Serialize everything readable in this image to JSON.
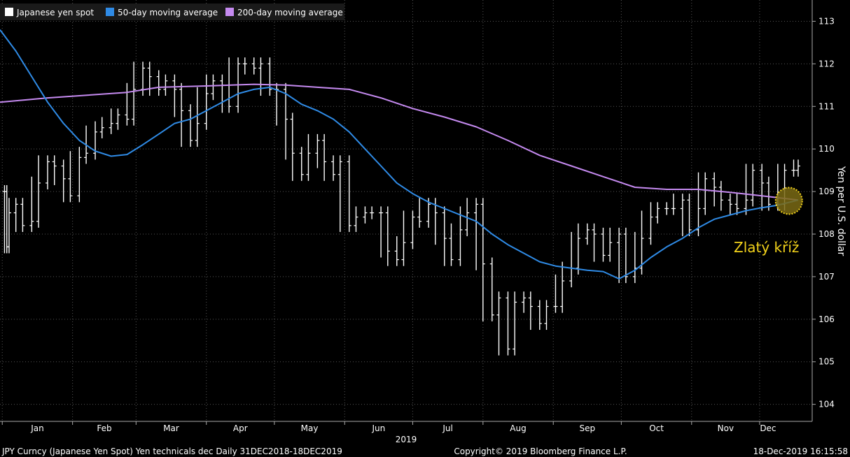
{
  "chart_data": {
    "type": "line",
    "ylabel": "Yen per U.S. dollar",
    "ylim": [
      103.6,
      113.5
    ],
    "yticks": [
      104,
      105,
      106,
      107,
      108,
      109,
      110,
      111,
      112,
      113
    ],
    "month_labels": [
      "Jan",
      "Feb",
      "Mar",
      "Apr",
      "May",
      "Jun",
      "Jul",
      "Aug",
      "Sep",
      "Oct",
      "Nov",
      "Dec"
    ],
    "year_label": "2019",
    "x_domain": [
      "2018-12-31",
      "2019-12-18"
    ],
    "legend": {
      "placement": "top-left",
      "entries": [
        {
          "label": "Japanese yen spot",
          "color": "#ffffff"
        },
        {
          "label": "50-day moving average",
          "color": "#2f8be6"
        },
        {
          "label": "200-day moving average",
          "color": "#c58af0"
        }
      ]
    },
    "series": [
      {
        "name": "Japanese yen spot",
        "style": "ohlc-bars",
        "color": "#ffffff",
        "points": [
          [
            "2019-01-02",
            109.0
          ],
          [
            "2019-01-03",
            107.7
          ],
          [
            "2019-01-04",
            108.5
          ],
          [
            "2019-01-07",
            108.7
          ],
          [
            "2019-01-10",
            108.2
          ],
          [
            "2019-01-14",
            108.3
          ],
          [
            "2019-01-17",
            109.2
          ],
          [
            "2019-01-21",
            109.7
          ],
          [
            "2019-01-24",
            109.6
          ],
          [
            "2019-01-28",
            109.3
          ],
          [
            "2019-01-31",
            108.9
          ],
          [
            "2019-02-04",
            109.8
          ],
          [
            "2019-02-07",
            109.9
          ],
          [
            "2019-02-11",
            110.4
          ],
          [
            "2019-02-14",
            110.5
          ],
          [
            "2019-02-18",
            110.6
          ],
          [
            "2019-02-21",
            110.8
          ],
          [
            "2019-02-25",
            110.7
          ],
          [
            "2019-02-28",
            111.4
          ],
          [
            "2019-03-04",
            111.9
          ],
          [
            "2019-03-07",
            111.7
          ],
          [
            "2019-03-11",
            111.4
          ],
          [
            "2019-03-14",
            111.6
          ],
          [
            "2019-03-18",
            111.4
          ],
          [
            "2019-03-21",
            110.9
          ],
          [
            "2019-03-25",
            110.2
          ],
          [
            "2019-03-28",
            110.6
          ],
          [
            "2019-04-01",
            111.3
          ],
          [
            "2019-04-04",
            111.6
          ],
          [
            "2019-04-08",
            111.5
          ],
          [
            "2019-04-11",
            111.0
          ],
          [
            "2019-04-15",
            112.0
          ],
          [
            "2019-04-18",
            112.0
          ],
          [
            "2019-04-22",
            111.9
          ],
          [
            "2019-04-25",
            112.0
          ],
          [
            "2019-04-29",
            111.4
          ],
          [
            "2019-05-02",
            111.4
          ],
          [
            "2019-05-06",
            110.7
          ],
          [
            "2019-05-09",
            109.9
          ],
          [
            "2019-05-13",
            109.4
          ],
          [
            "2019-05-16",
            109.9
          ],
          [
            "2019-05-20",
            110.2
          ],
          [
            "2019-05-23",
            109.7
          ],
          [
            "2019-05-27",
            109.4
          ],
          [
            "2019-05-30",
            109.7
          ],
          [
            "2019-06-03",
            108.2
          ],
          [
            "2019-06-06",
            108.4
          ],
          [
            "2019-06-10",
            108.5
          ],
          [
            "2019-06-13",
            108.5
          ],
          [
            "2019-06-17",
            108.5
          ],
          [
            "2019-06-20",
            107.6
          ],
          [
            "2019-06-24",
            107.4
          ],
          [
            "2019-06-27",
            107.8
          ],
          [
            "2019-07-01",
            108.4
          ],
          [
            "2019-07-04",
            108.3
          ],
          [
            "2019-07-08",
            108.7
          ],
          [
            "2019-07-11",
            108.5
          ],
          [
            "2019-07-15",
            107.9
          ],
          [
            "2019-07-18",
            107.4
          ],
          [
            "2019-07-22",
            108.1
          ],
          [
            "2019-07-25",
            108.5
          ],
          [
            "2019-07-29",
            108.7
          ],
          [
            "2019-08-01",
            107.3
          ],
          [
            "2019-08-05",
            106.1
          ],
          [
            "2019-08-08",
            106.5
          ],
          [
            "2019-08-12",
            105.3
          ],
          [
            "2019-08-15",
            106.4
          ],
          [
            "2019-08-19",
            106.5
          ],
          [
            "2019-08-22",
            106.3
          ],
          [
            "2019-08-26",
            105.9
          ],
          [
            "2019-08-29",
            106.3
          ],
          [
            "2019-09-02",
            106.3
          ],
          [
            "2019-09-05",
            106.9
          ],
          [
            "2019-09-09",
            107.2
          ],
          [
            "2019-09-12",
            107.9
          ],
          [
            "2019-09-16",
            108.1
          ],
          [
            "2019-09-19",
            108.0
          ],
          [
            "2019-09-23",
            107.5
          ],
          [
            "2019-09-26",
            107.8
          ],
          [
            "2019-09-30",
            108.0
          ],
          [
            "2019-10-03",
            107.0
          ],
          [
            "2019-10-07",
            107.2
          ],
          [
            "2019-10-10",
            107.9
          ],
          [
            "2019-10-14",
            108.4
          ],
          [
            "2019-10-17",
            108.6
          ],
          [
            "2019-10-21",
            108.6
          ],
          [
            "2019-10-24",
            108.6
          ],
          [
            "2019-10-28",
            108.8
          ],
          [
            "2019-10-31",
            108.1
          ],
          [
            "2019-11-04",
            108.6
          ],
          [
            "2019-11-07",
            109.3
          ],
          [
            "2019-11-11",
            109.1
          ],
          [
            "2019-11-14",
            108.8
          ],
          [
            "2019-11-18",
            108.7
          ],
          [
            "2019-11-21",
            108.6
          ],
          [
            "2019-11-25",
            108.8
          ],
          [
            "2019-11-28",
            109.5
          ],
          [
            "2019-12-02",
            109.2
          ],
          [
            "2019-12-05",
            108.7
          ],
          [
            "2019-12-09",
            108.7
          ],
          [
            "2019-12-12",
            109.5
          ],
          [
            "2019-12-16",
            109.5
          ],
          [
            "2019-12-18",
            109.6
          ]
        ]
      },
      {
        "name": "50-day moving average",
        "style": "line",
        "color": "#2f8be6",
        "points": [
          [
            "2018-12-31",
            112.8
          ],
          [
            "2019-01-07",
            112.3
          ],
          [
            "2019-01-14",
            111.7
          ],
          [
            "2019-01-21",
            111.1
          ],
          [
            "2019-01-28",
            110.6
          ],
          [
            "2019-02-04",
            110.2
          ],
          [
            "2019-02-11",
            109.95
          ],
          [
            "2019-02-18",
            109.83
          ],
          [
            "2019-02-25",
            109.87
          ],
          [
            "2019-03-04",
            110.1
          ],
          [
            "2019-03-11",
            110.35
          ],
          [
            "2019-03-18",
            110.6
          ],
          [
            "2019-03-25",
            110.7
          ],
          [
            "2019-04-01",
            110.9
          ],
          [
            "2019-04-08",
            111.1
          ],
          [
            "2019-04-15",
            111.3
          ],
          [
            "2019-04-22",
            111.4
          ],
          [
            "2019-04-29",
            111.45
          ],
          [
            "2019-05-06",
            111.3
          ],
          [
            "2019-05-13",
            111.05
          ],
          [
            "2019-05-20",
            110.9
          ],
          [
            "2019-05-27",
            110.7
          ],
          [
            "2019-06-03",
            110.4
          ],
          [
            "2019-06-10",
            110.0
          ],
          [
            "2019-06-17",
            109.6
          ],
          [
            "2019-06-24",
            109.2
          ],
          [
            "2019-07-01",
            108.95
          ],
          [
            "2019-07-08",
            108.75
          ],
          [
            "2019-07-15",
            108.6
          ],
          [
            "2019-07-22",
            108.45
          ],
          [
            "2019-07-29",
            108.3
          ],
          [
            "2019-08-05",
            108.0
          ],
          [
            "2019-08-12",
            107.75
          ],
          [
            "2019-08-19",
            107.55
          ],
          [
            "2019-08-26",
            107.35
          ],
          [
            "2019-09-02",
            107.25
          ],
          [
            "2019-09-09",
            107.2
          ],
          [
            "2019-09-16",
            107.15
          ],
          [
            "2019-09-23",
            107.12
          ],
          [
            "2019-09-30",
            106.95
          ],
          [
            "2019-10-07",
            107.15
          ],
          [
            "2019-10-14",
            107.45
          ],
          [
            "2019-10-21",
            107.7
          ],
          [
            "2019-10-28",
            107.9
          ],
          [
            "2019-11-04",
            108.15
          ],
          [
            "2019-11-11",
            108.35
          ],
          [
            "2019-11-18",
            108.45
          ],
          [
            "2019-11-25",
            108.55
          ],
          [
            "2019-12-02",
            108.62
          ],
          [
            "2019-12-09",
            108.68
          ],
          [
            "2019-12-18",
            108.8
          ]
        ]
      },
      {
        "name": "200-day moving average",
        "style": "line",
        "color": "#c58af0",
        "points": [
          [
            "2018-12-31",
            111.1
          ],
          [
            "2019-01-21",
            111.2
          ],
          [
            "2019-02-04",
            111.25
          ],
          [
            "2019-02-25",
            111.33
          ],
          [
            "2019-03-11",
            111.45
          ],
          [
            "2019-04-01",
            111.48
          ],
          [
            "2019-04-22",
            111.52
          ],
          [
            "2019-05-06",
            111.5
          ],
          [
            "2019-05-20",
            111.45
          ],
          [
            "2019-06-03",
            111.4
          ],
          [
            "2019-06-17",
            111.2
          ],
          [
            "2019-07-01",
            110.95
          ],
          [
            "2019-07-15",
            110.75
          ],
          [
            "2019-07-29",
            110.52
          ],
          [
            "2019-08-12",
            110.2
          ],
          [
            "2019-08-26",
            109.85
          ],
          [
            "2019-09-09",
            109.6
          ],
          [
            "2019-09-23",
            109.35
          ],
          [
            "2019-10-07",
            109.1
          ],
          [
            "2019-10-21",
            109.05
          ],
          [
            "2019-11-04",
            109.05
          ],
          [
            "2019-11-18",
            108.98
          ],
          [
            "2019-12-02",
            108.9
          ],
          [
            "2019-12-18",
            108.8
          ]
        ]
      }
    ],
    "annotations": [
      {
        "text": "Zlatý kříž",
        "color": "#f2d21b",
        "marker": "golden-cross-circle",
        "at": [
          "2019-12-17",
          108.78
        ]
      }
    ]
  },
  "footer": {
    "left": "JPY Curncy (Japanese Yen Spot) Yen technicals dec  Daily 31DEC2018-18DEC2019",
    "center": "Copyright© 2019 Bloomberg Finance L.P.",
    "right": "18-Dec-2019 16:15:58"
  }
}
